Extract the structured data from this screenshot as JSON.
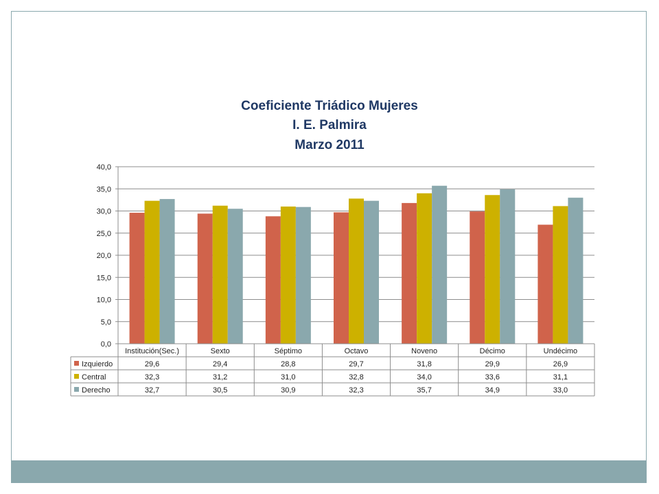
{
  "chart_data": {
    "type": "bar",
    "title_lines": [
      "Coeficiente Triádico Mujeres",
      "I. E. Palmira",
      "Marzo 2011"
    ],
    "categories": [
      "Institución(Sec.)",
      "Sexto",
      "Séptimo",
      "Octavo",
      "Noveno",
      "Décimo",
      "Undécimo"
    ],
    "series": [
      {
        "name": "Izquierdo",
        "color": "#d0634b",
        "values": [
          29.6,
          29.4,
          28.8,
          29.7,
          31.8,
          29.9,
          26.9
        ],
        "labels": [
          "29,6",
          "29,4",
          "28,8",
          "29,7",
          "31,8",
          "29,9",
          "26,9"
        ]
      },
      {
        "name": "Central",
        "color": "#cdb100",
        "values": [
          32.3,
          31.2,
          31.0,
          32.8,
          34.0,
          33.6,
          31.1
        ],
        "labels": [
          "32,3",
          "31,2",
          "31,0",
          "32,8",
          "34,0",
          "33,6",
          "31,1"
        ]
      },
      {
        "name": "Derecho",
        "color": "#8aa8ad",
        "values": [
          32.7,
          30.5,
          30.9,
          32.3,
          35.7,
          34.9,
          33.0
        ],
        "labels": [
          "32,7",
          "30,5",
          "30,9",
          "32,3",
          "35,7",
          "34,9",
          "33,0"
        ]
      }
    ],
    "ylim": [
      0,
      40
    ],
    "yticks": [
      "0,0",
      "5,0",
      "10,0",
      "15,0",
      "20,0",
      "25,0",
      "30,0",
      "35,0",
      "40,0"
    ],
    "grid": true,
    "legend": "data-table"
  },
  "colors": {
    "frame": "#8aa8ad",
    "title": "#1f3864",
    "gridline": "#8c8c8c"
  }
}
